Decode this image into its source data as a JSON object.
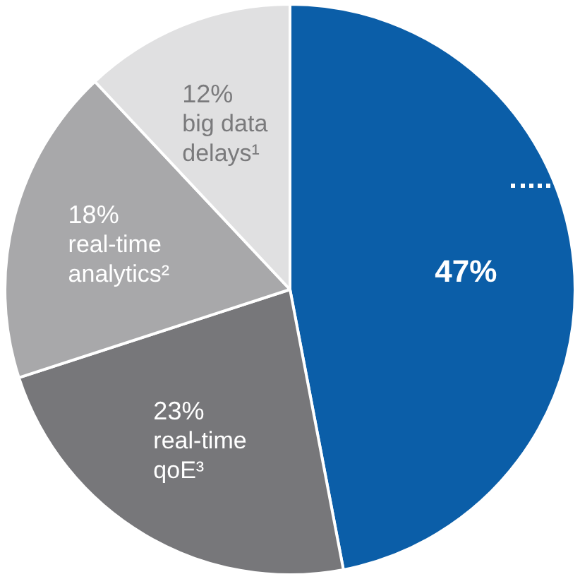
{
  "chart_data": {
    "type": "pie",
    "categories": [
      null,
      "real-time qoE³",
      "real-time analytics²",
      "big data delays¹"
    ],
    "values": [
      47,
      23,
      18,
      12
    ],
    "colors": [
      "#0b5ea8",
      "#77777a",
      "#a8a8aa",
      "#e0e0e1"
    ],
    "value_labels": [
      "47%",
      "23%",
      "18%",
      "12%"
    ],
    "legend": false
  }
}
